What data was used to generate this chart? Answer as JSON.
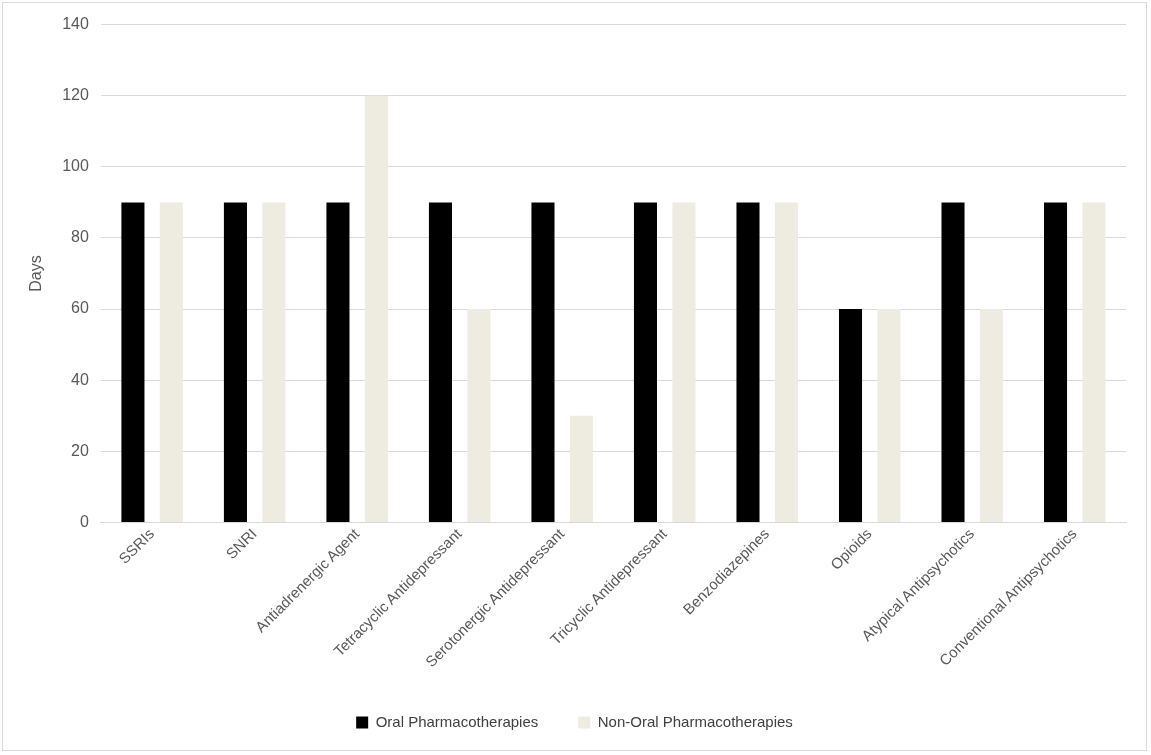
{
  "chart_data": {
    "type": "bar",
    "ylabel": "Days",
    "categories": [
      "SSRIs",
      "SNRI",
      "Antiadrenergic Agent",
      "Tetracyclic Antidepressant",
      "Serotonergic Antidepressant",
      "Tricyclic Antidepressant",
      "Benzodiazepines",
      "Opioids",
      "Atypical Antipsychotics",
      "Conventional Antipsychotics"
    ],
    "series": [
      {
        "name": "Oral Pharmacotherapies",
        "color": "#000000",
        "values": [
          90,
          90,
          90,
          90,
          90,
          90,
          90,
          60,
          90,
          90
        ]
      },
      {
        "name": "Non-Oral Pharmacotherapies",
        "color": "#eeece1",
        "values": [
          90,
          90,
          120,
          60,
          30,
          90,
          90,
          60,
          60,
          90
        ]
      }
    ],
    "ylim": [
      0,
      140
    ],
    "yticks": [
      0,
      20,
      40,
      60,
      80,
      100,
      120,
      140
    ],
    "grid": "y",
    "legend": "bottom"
  }
}
